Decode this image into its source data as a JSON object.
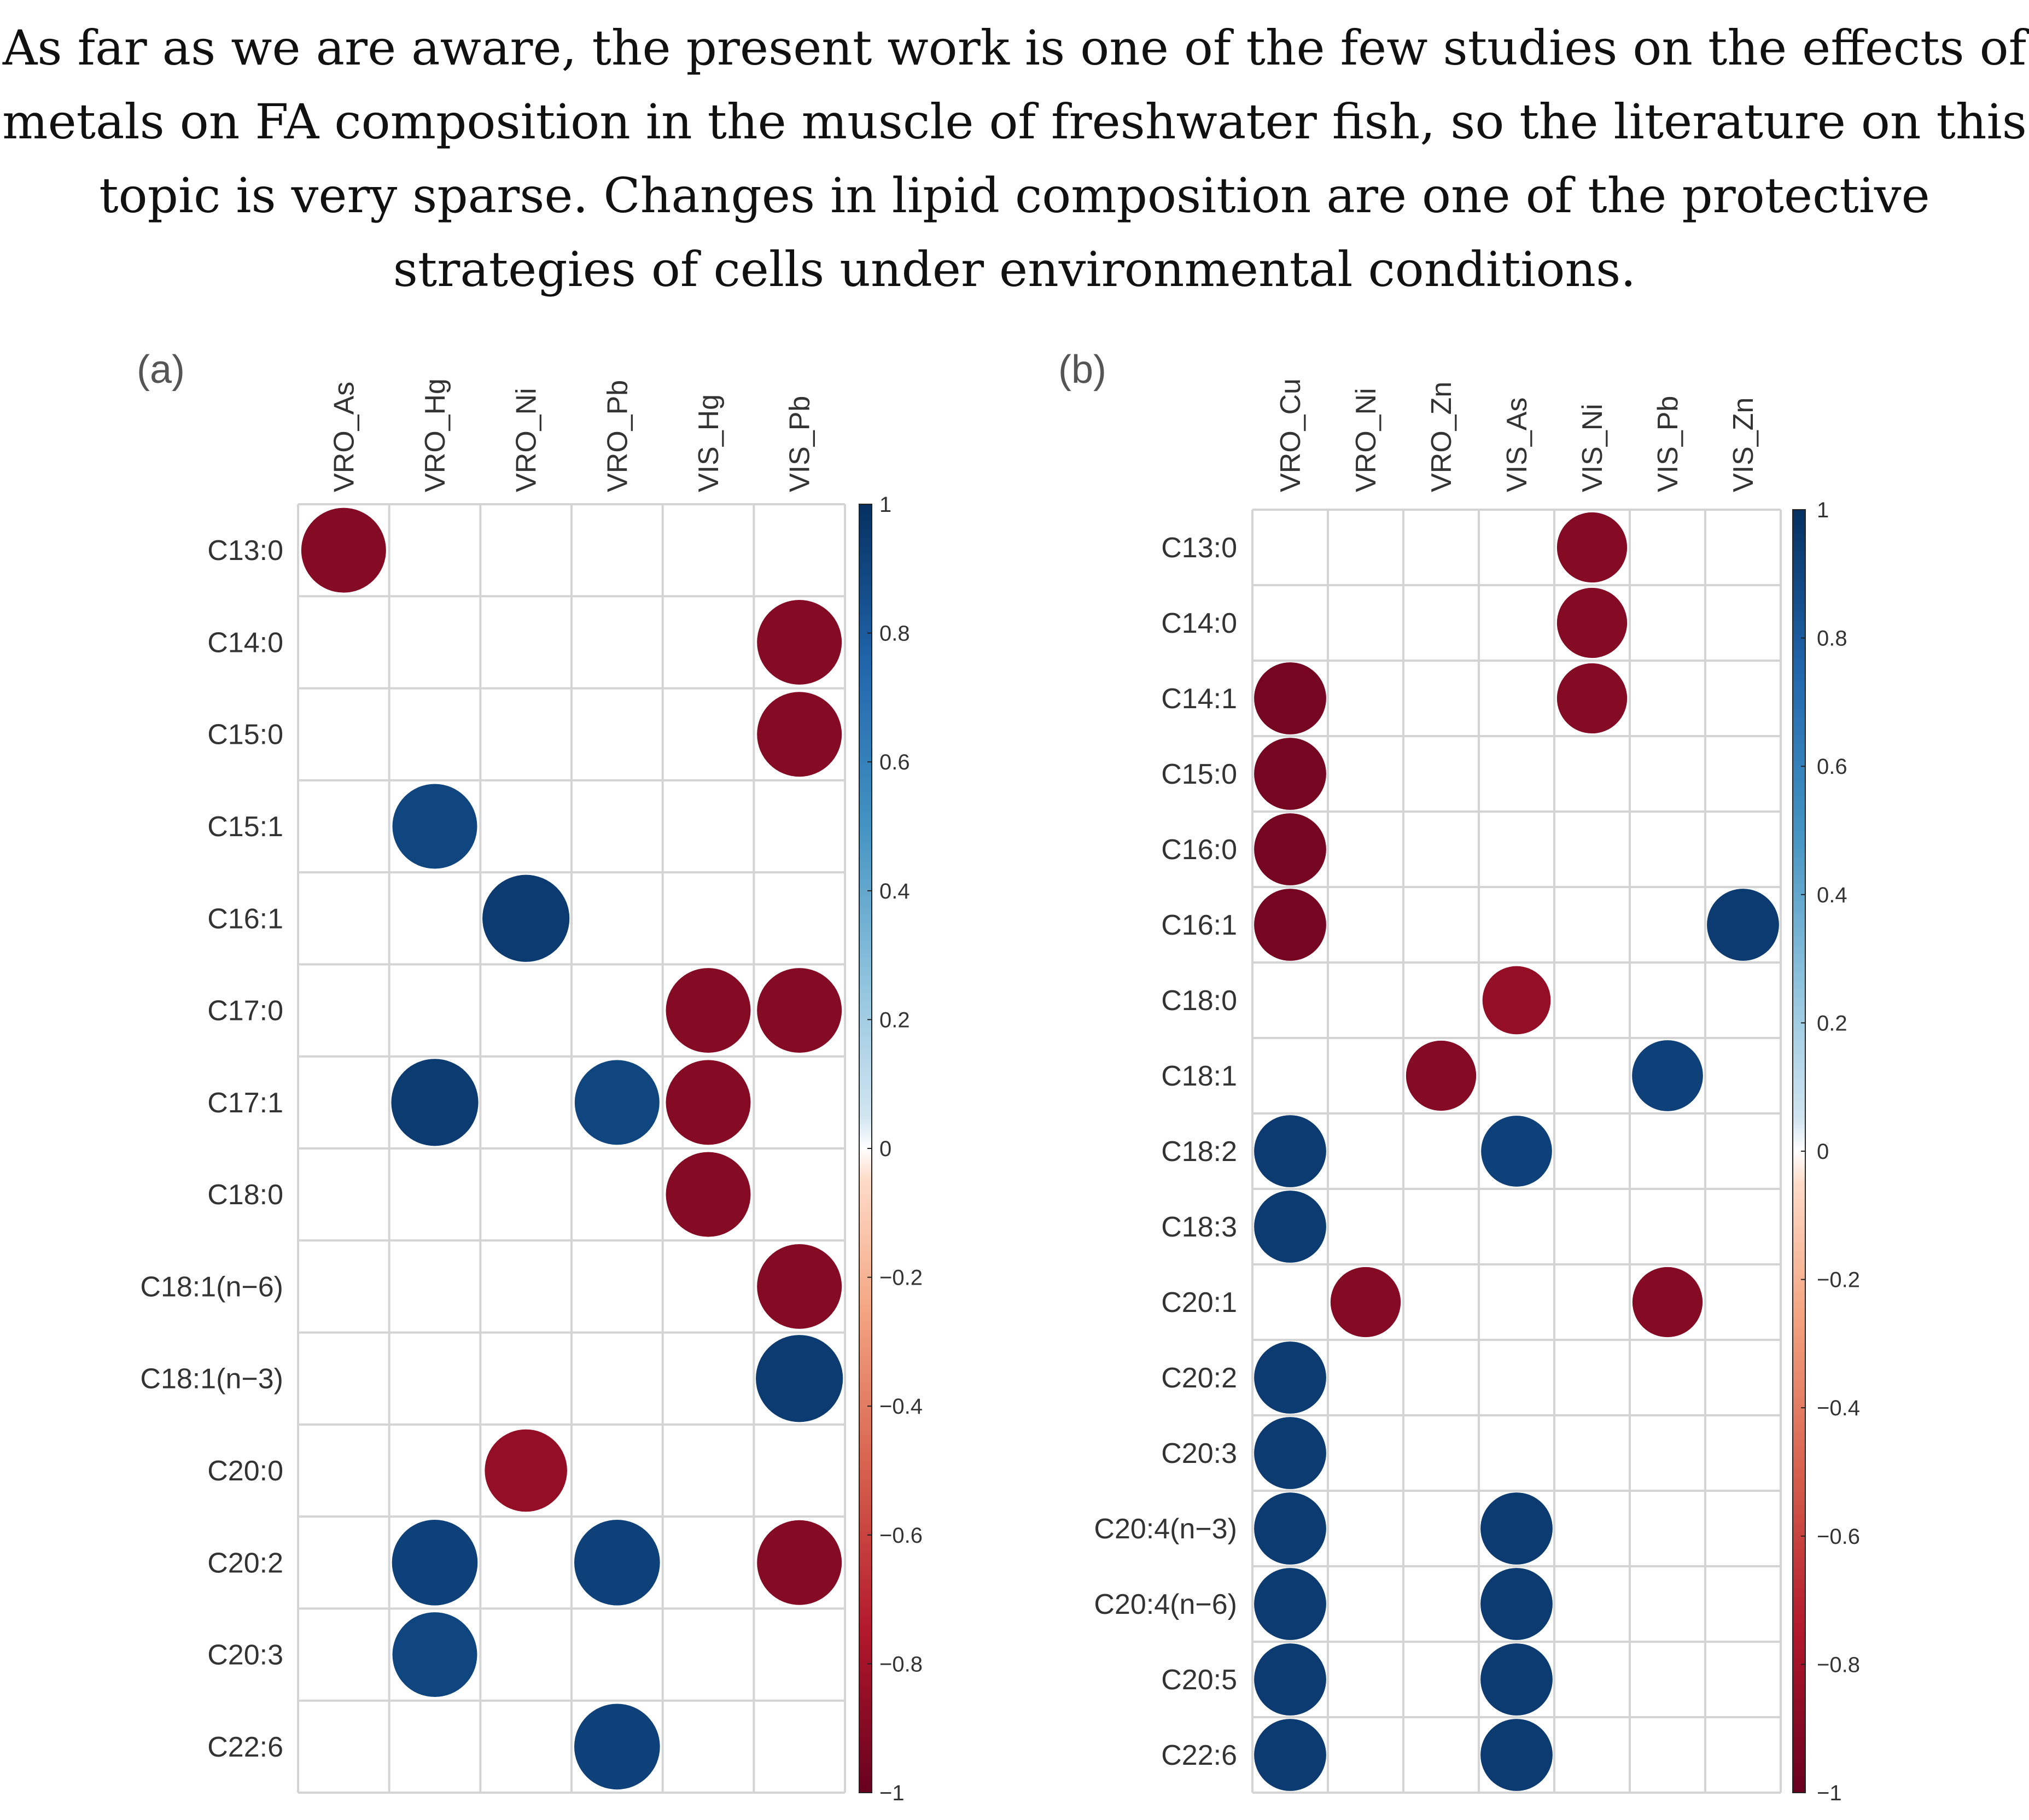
{
  "caption": {
    "lines": [
      "As far as we are aware, the present work is one of the few studies on the effects of",
      "metals on FA composition in the muscle of freshwater fish, so the literature on this",
      "topic is very sparse. Changes in lipid composition are one of the protective",
      "strategies of cells under environmental conditions."
    ]
  },
  "chart_data": [
    {
      "panel_label": "(a)",
      "type": "heatmap",
      "subtype": "correlation-circle-plot",
      "columns": [
        "VRO_As",
        "VRO_Hg",
        "VRO_Ni",
        "VRO_Pb",
        "VIS_Hg",
        "VIS_Pb"
      ],
      "rows": [
        "C13:0",
        "C14:0",
        "C15:0",
        "C15:1",
        "C16:1",
        "C17:0",
        "C17:1",
        "C18:0",
        "C18:1(n−6)",
        "C18:1(n−3)",
        "C20:0",
        "C20:2",
        "C20:3",
        "C22:6"
      ],
      "values": [
        {
          "row": "C13:0",
          "col": "VRO_As",
          "r": -0.9
        },
        {
          "row": "C14:0",
          "col": "VIS_Pb",
          "r": -0.9
        },
        {
          "row": "C15:0",
          "col": "VIS_Pb",
          "r": -0.9
        },
        {
          "row": "C15:1",
          "col": "VRO_Hg",
          "r": 0.9
        },
        {
          "row": "C16:1",
          "col": "VRO_Ni",
          "r": 0.95
        },
        {
          "row": "C17:0",
          "col": "VIS_Hg",
          "r": -0.9
        },
        {
          "row": "C17:0",
          "col": "VIS_Pb",
          "r": -0.9
        },
        {
          "row": "C17:1",
          "col": "VRO_Hg",
          "r": 0.95
        },
        {
          "row": "C17:1",
          "col": "VRO_Pb",
          "r": 0.9
        },
        {
          "row": "C17:1",
          "col": "VIS_Hg",
          "r": -0.9
        },
        {
          "row": "C18:0",
          "col": "VIS_Hg",
          "r": -0.9
        },
        {
          "row": "C18:1(n−6)",
          "col": "VIS_Pb",
          "r": -0.9
        },
        {
          "row": "C18:1(n−3)",
          "col": "VIS_Pb",
          "r": 0.95
        },
        {
          "row": "C20:0",
          "col": "VRO_Ni",
          "r": -0.85
        },
        {
          "row": "C20:2",
          "col": "VRO_Hg",
          "r": 0.92
        },
        {
          "row": "C20:2",
          "col": "VRO_Pb",
          "r": 0.92
        },
        {
          "row": "C20:2",
          "col": "VIS_Pb",
          "r": -0.9
        },
        {
          "row": "C20:3",
          "col": "VRO_Hg",
          "r": 0.9
        },
        {
          "row": "C22:6",
          "col": "VRO_Pb",
          "r": 0.92
        }
      ],
      "colorbar": {
        "range": [
          -1,
          1
        ],
        "ticks": [
          "1",
          "0.8",
          "0.6",
          "0.4",
          "0.2",
          "0",
          "−0.2",
          "−0.4",
          "−0.6",
          "−0.8",
          "−1"
        ]
      },
      "grid": true
    },
    {
      "panel_label": "(b)",
      "type": "heatmap",
      "subtype": "correlation-circle-plot",
      "columns": [
        "VRO_Cu",
        "VRO_Ni",
        "VRO_Zn",
        "VIS_As",
        "VIS_Ni",
        "VIS_Pb",
        "VIS_Zn"
      ],
      "rows": [
        "C13:0",
        "C14:0",
        "C14:1",
        "C15:0",
        "C16:0",
        "C16:1",
        "C18:0",
        "C18:1",
        "C18:2",
        "C18:3",
        "C20:1",
        "C20:2",
        "C20:3",
        "C20:4(n−3)",
        "C20:4(n−6)",
        "C20:5",
        "C22:6"
      ],
      "values": [
        {
          "row": "C13:0",
          "col": "VIS_Ni",
          "r": -0.9
        },
        {
          "row": "C14:0",
          "col": "VIS_Ni",
          "r": -0.9
        },
        {
          "row": "C14:1",
          "col": "VRO_Cu",
          "r": -0.95
        },
        {
          "row": "C14:1",
          "col": "VIS_Ni",
          "r": -0.9
        },
        {
          "row": "C15:0",
          "col": "VRO_Cu",
          "r": -0.95
        },
        {
          "row": "C16:0",
          "col": "VRO_Cu",
          "r": -0.95
        },
        {
          "row": "C16:1",
          "col": "VRO_Cu",
          "r": -0.95
        },
        {
          "row": "C16:1",
          "col": "VIS_Zn",
          "r": 0.95
        },
        {
          "row": "C18:0",
          "col": "VIS_As",
          "r": -0.85
        },
        {
          "row": "C18:1",
          "col": "VRO_Zn",
          "r": -0.9
        },
        {
          "row": "C18:1",
          "col": "VIS_Pb",
          "r": 0.92
        },
        {
          "row": "C18:2",
          "col": "VRO_Cu",
          "r": 0.95
        },
        {
          "row": "C18:2",
          "col": "VIS_As",
          "r": 0.92
        },
        {
          "row": "C18:3",
          "col": "VRO_Cu",
          "r": 0.95
        },
        {
          "row": "C20:1",
          "col": "VRO_Ni",
          "r": -0.9
        },
        {
          "row": "C20:1",
          "col": "VIS_Pb",
          "r": -0.9
        },
        {
          "row": "C20:2",
          "col": "VRO_Cu",
          "r": 0.95
        },
        {
          "row": "C20:3",
          "col": "VRO_Cu",
          "r": 0.95
        },
        {
          "row": "C20:4(n−3)",
          "col": "VRO_Cu",
          "r": 0.95
        },
        {
          "row": "C20:4(n−3)",
          "col": "VIS_As",
          "r": 0.95
        },
        {
          "row": "C20:4(n−6)",
          "col": "VRO_Cu",
          "r": 0.95
        },
        {
          "row": "C20:4(n−6)",
          "col": "VIS_As",
          "r": 0.95
        },
        {
          "row": "C20:5",
          "col": "VRO_Cu",
          "r": 0.95
        },
        {
          "row": "C20:5",
          "col": "VIS_As",
          "r": 0.95
        },
        {
          "row": "C22:6",
          "col": "VRO_Cu",
          "r": 0.95
        },
        {
          "row": "C22:6",
          "col": "VIS_As",
          "r": 0.95
        }
      ],
      "colorbar": {
        "range": [
          -1,
          1
        ],
        "ticks": [
          "1",
          "0.8",
          "0.6",
          "0.4",
          "0.2",
          "0",
          "−0.2",
          "−0.4",
          "−0.6",
          "−0.8",
          "−1"
        ]
      },
      "grid": true
    }
  ]
}
